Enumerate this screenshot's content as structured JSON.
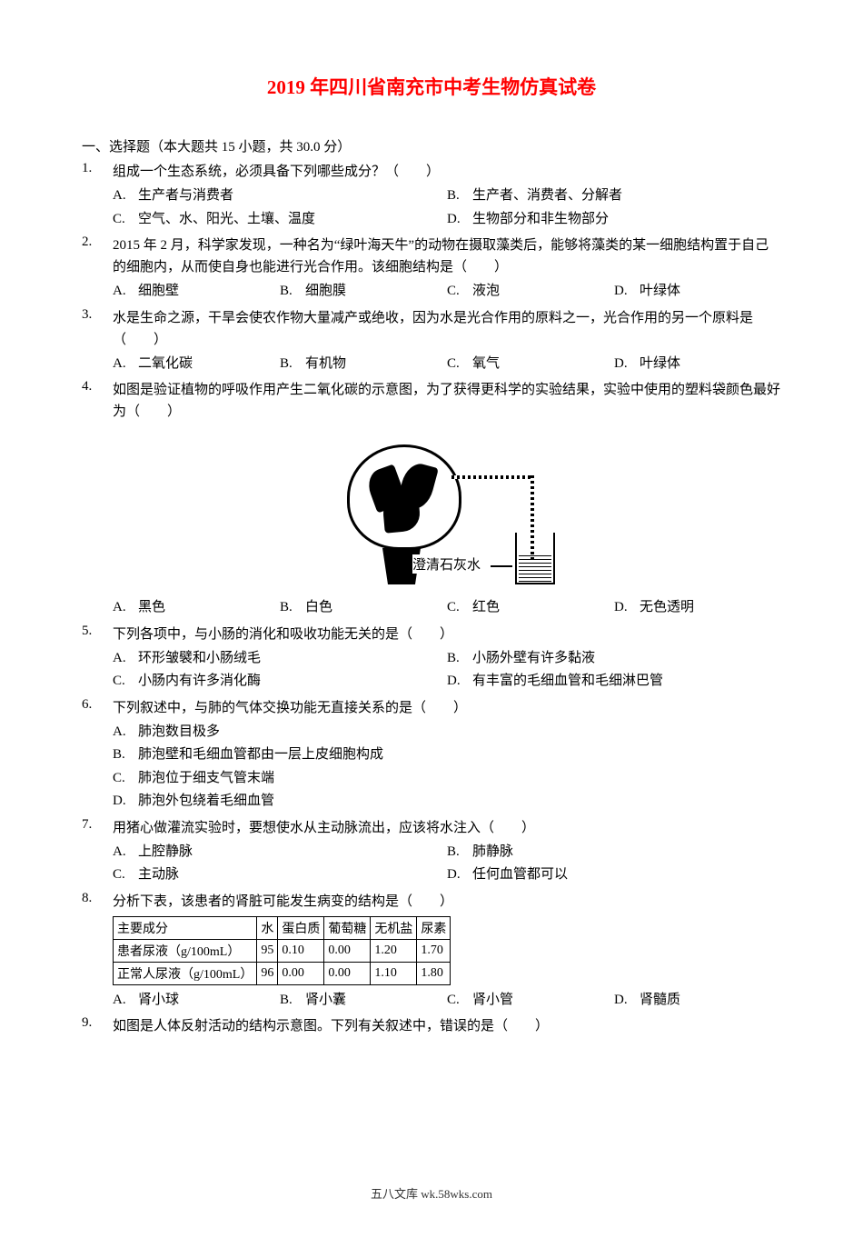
{
  "title": "2019 年四川省南充市中考生物仿真试卷",
  "section_header": "一、选择题（本大题共 15 小题，共 30.0 分）",
  "figure_label": "澄清石灰水",
  "questions": [
    {
      "num": "1.",
      "text": "组成一个生态系统，必须具备下列哪些成分？（　　）",
      "layout": "2",
      "options": [
        {
          "l": "A.",
          "t": "生产者与消费者"
        },
        {
          "l": "B.",
          "t": "生产者、消费者、分解者"
        },
        {
          "l": "C.",
          "t": "空气、水、阳光、土壤、温度"
        },
        {
          "l": "D.",
          "t": "生物部分和非生物部分"
        }
      ]
    },
    {
      "num": "2.",
      "text": "2015 年 2 月，科学家发现，一种名为“绿叶海天牛”的动物在摄取藻类后，能够将藻类的某一细胞结构置于自己的细胞内，从而使自身也能进行光合作用。该细胞结构是（　　）",
      "layout": "4",
      "options": [
        {
          "l": "A.",
          "t": "细胞壁"
        },
        {
          "l": "B.",
          "t": "细胞膜"
        },
        {
          "l": "C.",
          "t": "液泡"
        },
        {
          "l": "D.",
          "t": "叶绿体"
        }
      ]
    },
    {
      "num": "3.",
      "text": "水是生命之源，干旱会使农作物大量减产或绝收，因为水是光合作用的原料之一，光合作用的另一个原料是（　　）",
      "layout": "4",
      "options": [
        {
          "l": "A.",
          "t": "二氧化碳"
        },
        {
          "l": "B.",
          "t": "有机物"
        },
        {
          "l": "C.",
          "t": "氧气"
        },
        {
          "l": "D.",
          "t": "叶绿体"
        }
      ]
    },
    {
      "num": "4.",
      "text": "如图是验证植物的呼吸作用产生二氧化碳的示意图，为了获得更科学的实验结果，实验中使用的塑料袋颜色最好为（　　）",
      "layout": "4",
      "has_figure": true,
      "options": [
        {
          "l": "A.",
          "t": "黑色"
        },
        {
          "l": "B.",
          "t": "白色"
        },
        {
          "l": "C.",
          "t": "红色"
        },
        {
          "l": "D.",
          "t": "无色透明"
        }
      ]
    },
    {
      "num": "5.",
      "text": "下列各项中，与小肠的消化和吸收功能无关的是（　　）",
      "layout": "2",
      "options": [
        {
          "l": "A.",
          "t": "环形皱襞和小肠绒毛"
        },
        {
          "l": "B.",
          "t": "小肠外壁有许多黏液"
        },
        {
          "l": "C.",
          "t": "小肠内有许多消化酶"
        },
        {
          "l": "D.",
          "t": "有丰富的毛细血管和毛细淋巴管"
        }
      ]
    },
    {
      "num": "6.",
      "text": "下列叙述中，与肺的气体交换功能无直接关系的是（　　）",
      "layout": "1",
      "options": [
        {
          "l": "A.",
          "t": "肺泡数目极多"
        },
        {
          "l": "B.",
          "t": "肺泡壁和毛细血管都由一层上皮细胞构成"
        },
        {
          "l": "C.",
          "t": "肺泡位于细支气管末端"
        },
        {
          "l": "D.",
          "t": "肺泡外包绕着毛细血管"
        }
      ]
    },
    {
      "num": "7.",
      "text": "用猪心做灌流实验时，要想使水从主动脉流出，应该将水注入（　　）",
      "layout": "2",
      "options": [
        {
          "l": "A.",
          "t": "上腔静脉"
        },
        {
          "l": "B.",
          "t": "肺静脉"
        },
        {
          "l": "C.",
          "t": "主动脉"
        },
        {
          "l": "D.",
          "t": "任何血管都可以"
        }
      ]
    },
    {
      "num": "8.",
      "text": "分析下表，该患者的肾脏可能发生病变的结构是（　　）",
      "layout": "4",
      "has_table": true,
      "options": [
        {
          "l": "A.",
          "t": "肾小球"
        },
        {
          "l": "B.",
          "t": "肾小囊"
        },
        {
          "l": "C.",
          "t": "肾小管"
        },
        {
          "l": "D.",
          "t": "肾髓质"
        }
      ]
    },
    {
      "num": "9.",
      "text": "如图是人体反射活动的结构示意图。下列有关叙述中，错误的是（　　）",
      "layout": "none",
      "options": []
    }
  ],
  "table": {
    "headers": [
      "主要成分",
      "水",
      "蛋白质",
      "葡萄糖",
      "无机盐",
      "尿素"
    ],
    "rows": [
      [
        "患者尿液（g/100mL）",
        "95",
        "0.10",
        "0.00",
        "1.20",
        "1.70"
      ],
      [
        "正常人尿液（g/100mL）",
        "96",
        "0.00",
        "0.00",
        "1.10",
        "1.80"
      ]
    ]
  },
  "footer": "五八文库 wk.58wks.com"
}
